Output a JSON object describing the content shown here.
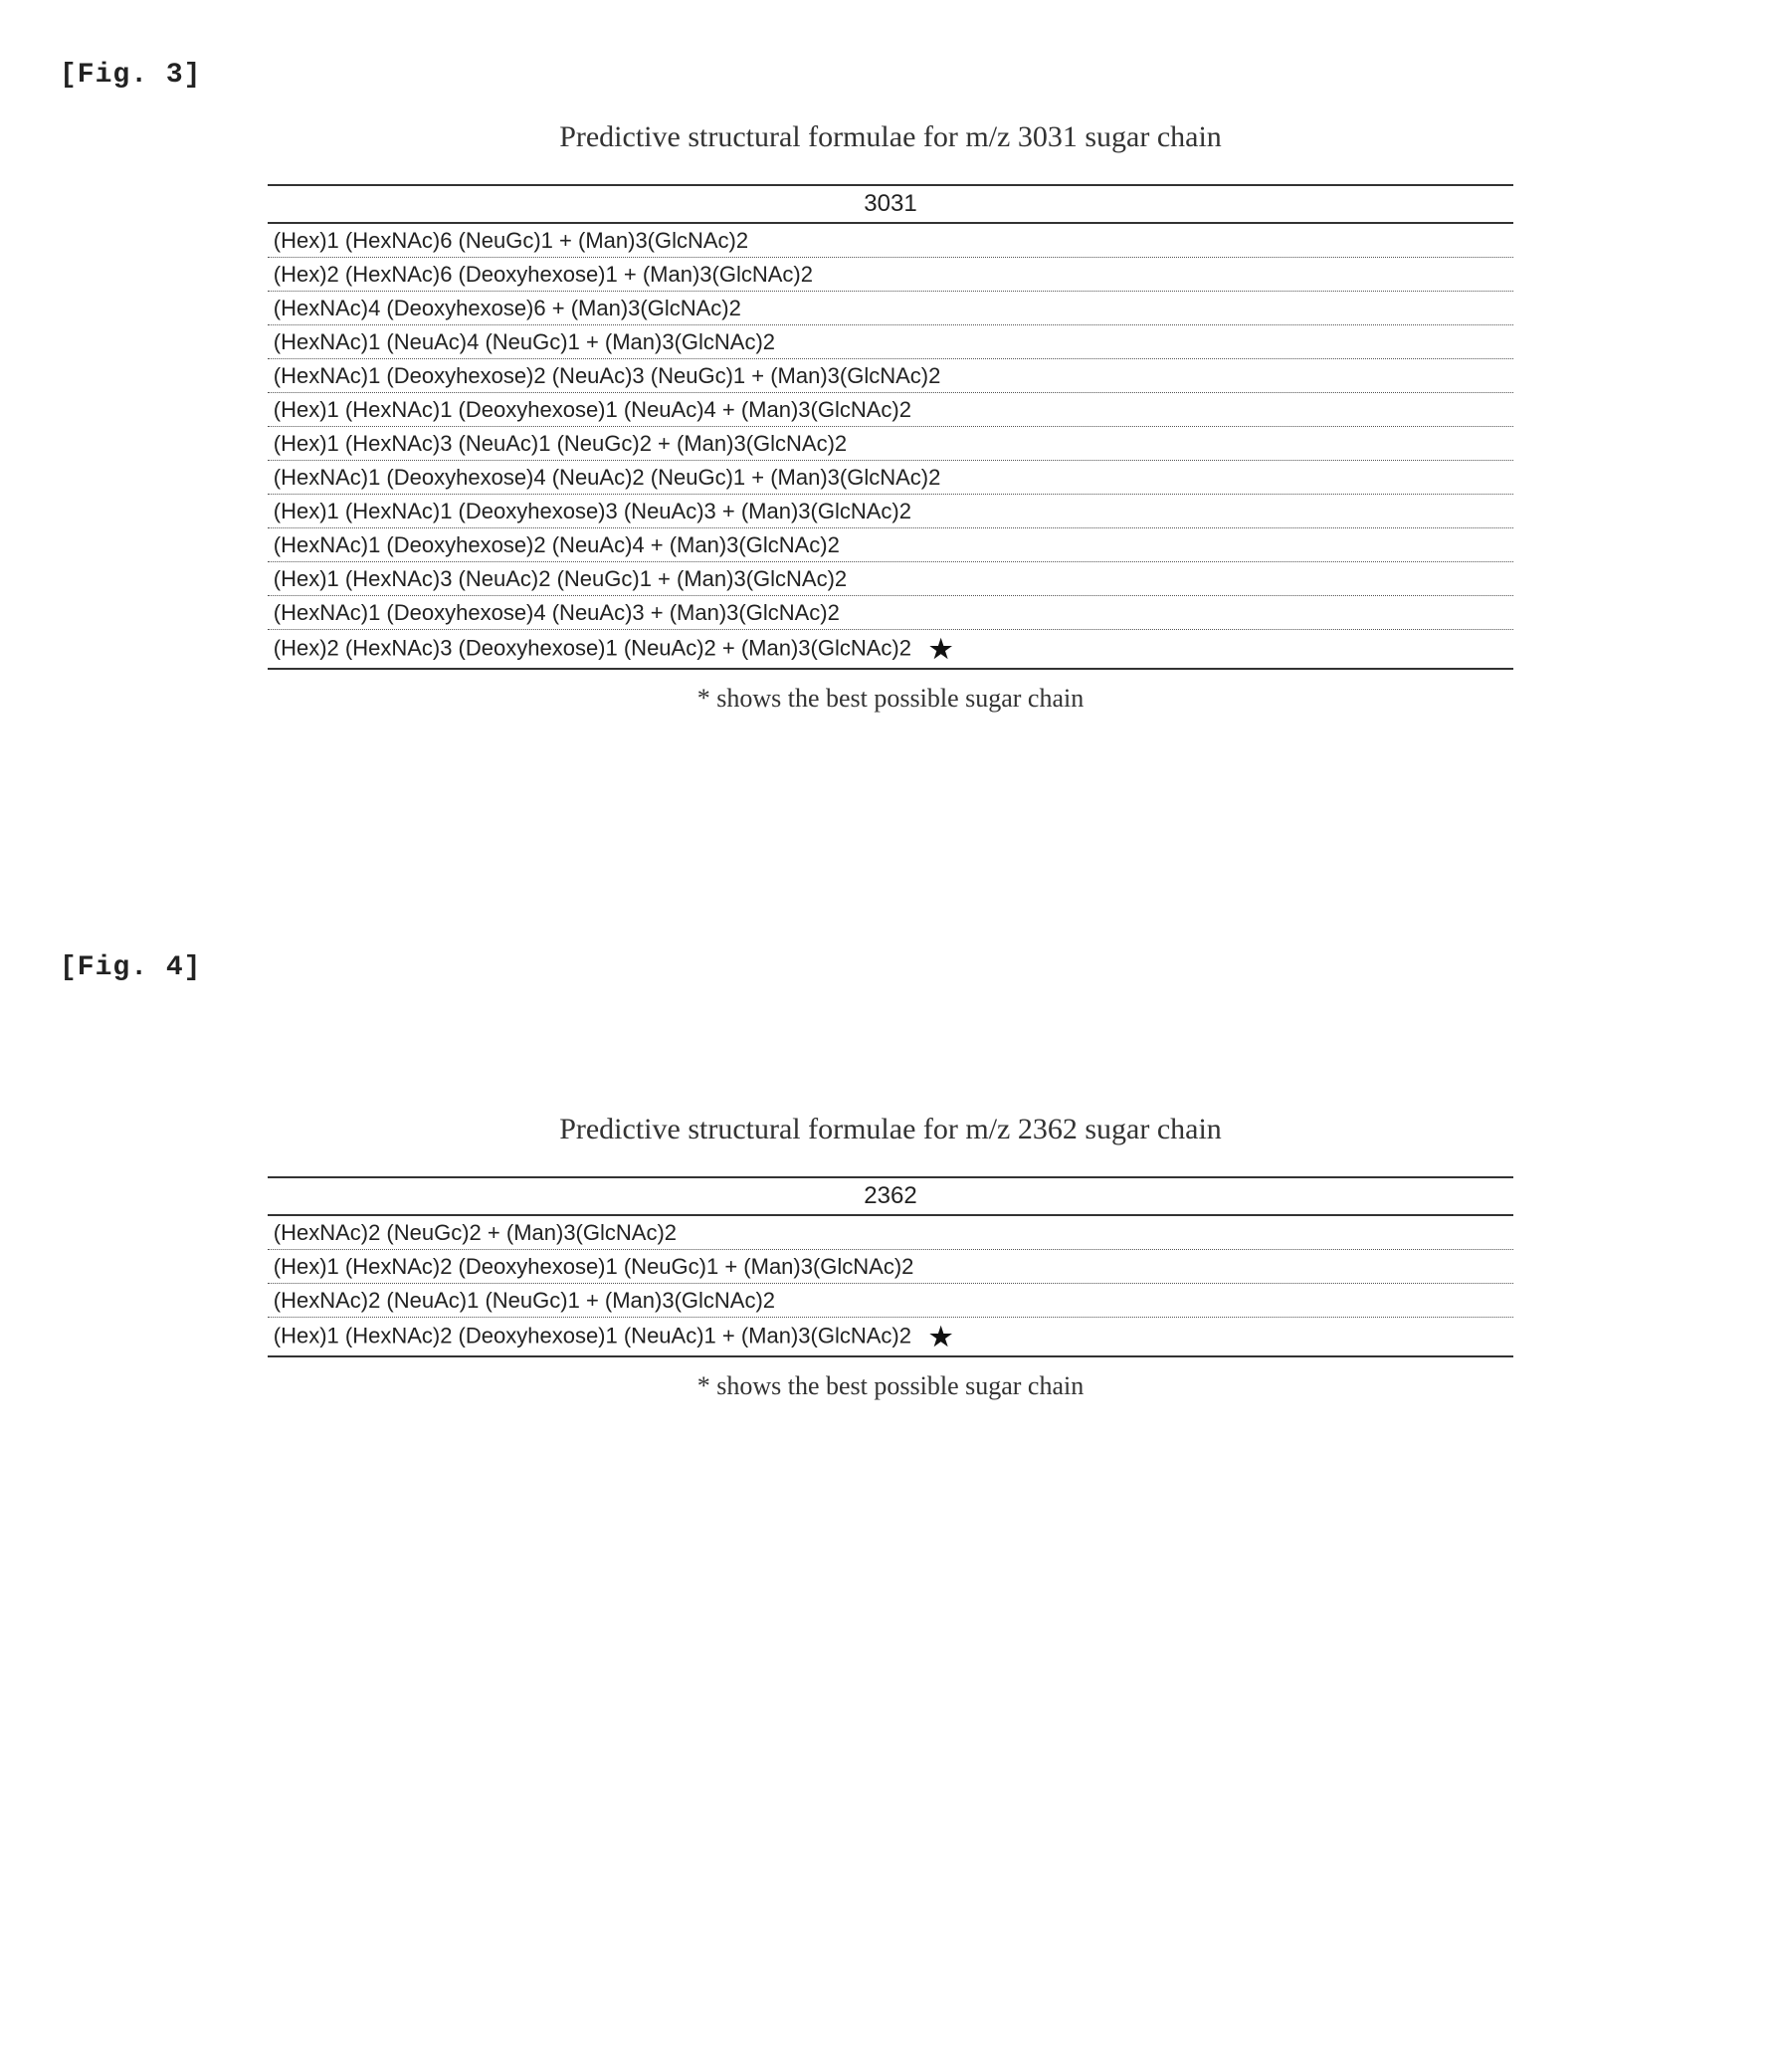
{
  "figure3": {
    "label": "[Fig. 3]",
    "title": "Predictive structural formulae for m/z 3031 sugar chain",
    "header": "3031",
    "rows": [
      {
        "formula": "(Hex)1 (HexNAc)6 (NeuGc)1 + (Man)3(GlcNAc)2",
        "starred": false
      },
      {
        "formula": "(Hex)2 (HexNAc)6 (Deoxyhexose)1 + (Man)3(GlcNAc)2",
        "starred": false
      },
      {
        "formula": "(HexNAc)4 (Deoxyhexose)6 + (Man)3(GlcNAc)2",
        "starred": false
      },
      {
        "formula": "(HexNAc)1 (NeuAc)4 (NeuGc)1 + (Man)3(GlcNAc)2",
        "starred": false
      },
      {
        "formula": "(HexNAc)1 (Deoxyhexose)2 (NeuAc)3 (NeuGc)1 + (Man)3(GlcNAc)2",
        "starred": false
      },
      {
        "formula": "(Hex)1 (HexNAc)1 (Deoxyhexose)1 (NeuAc)4 + (Man)3(GlcNAc)2",
        "starred": false
      },
      {
        "formula": "(Hex)1 (HexNAc)3 (NeuAc)1 (NeuGc)2 + (Man)3(GlcNAc)2",
        "starred": false
      },
      {
        "formula": "(HexNAc)1 (Deoxyhexose)4 (NeuAc)2 (NeuGc)1 + (Man)3(GlcNAc)2",
        "starred": false
      },
      {
        "formula": "(Hex)1 (HexNAc)1 (Deoxyhexose)3 (NeuAc)3 + (Man)3(GlcNAc)2",
        "starred": false
      },
      {
        "formula": "(HexNAc)1 (Deoxyhexose)2 (NeuAc)4 + (Man)3(GlcNAc)2",
        "starred": false
      },
      {
        "formula": "(Hex)1 (HexNAc)3 (NeuAc)2 (NeuGc)1 + (Man)3(GlcNAc)2",
        "starred": false
      },
      {
        "formula": "(HexNAc)1 (Deoxyhexose)4 (NeuAc)3 + (Man)3(GlcNAc)2",
        "starred": false
      },
      {
        "formula": "(Hex)2 (HexNAc)3 (Deoxyhexose)1 (NeuAc)2 + (Man)3(GlcNAc)2",
        "starred": true
      }
    ],
    "footnote": "* shows the best possible sugar chain"
  },
  "figure4": {
    "label": "[Fig. 4]",
    "title": "Predictive structural formulae for m/z 2362 sugar chain",
    "header": "2362",
    "rows": [
      {
        "formula": "(HexNAc)2 (NeuGc)2 + (Man)3(GlcNAc)2",
        "starred": false
      },
      {
        "formula": "(Hex)1 (HexNAc)2 (Deoxyhexose)1 (NeuGc)1 + (Man)3(GlcNAc)2",
        "starred": false
      },
      {
        "formula": "(HexNAc)2 (NeuAc)1 (NeuGc)1 + (Man)3(GlcNAc)2",
        "starred": false
      },
      {
        "formula": "(Hex)1 (HexNAc)2 (Deoxyhexose)1 (NeuAc)1 + (Man)3(GlcNAc)2",
        "starred": true
      }
    ],
    "footnote": "* shows the best possible sugar chain"
  },
  "star_glyph": "★"
}
